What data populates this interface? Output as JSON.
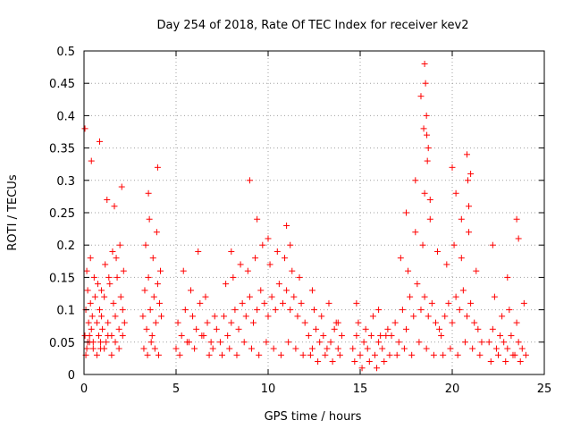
{
  "chart_data": {
    "type": "scatter",
    "title": "Day 254 of 2018, Rate Of TEC Index for receiver kev2",
    "xlabel": "GPS time / hours",
    "ylabel": "ROTI / TECUs",
    "xlim": [
      0,
      25
    ],
    "ylim": [
      0,
      0.5
    ],
    "x_ticks": [
      0,
      5,
      10,
      15,
      20,
      25
    ],
    "x_tick_labels": [
      "0",
      "5",
      "10",
      "15",
      "20",
      "25"
    ],
    "y_ticks": [
      0,
      0.05,
      0.1,
      0.15,
      0.2,
      0.25,
      0.3,
      0.35,
      0.4,
      0.45,
      0.5
    ],
    "y_tick_labels": [
      "0",
      "0.05",
      "0.1",
      "0.15",
      "0.2",
      "0.25",
      "0.3",
      "0.35",
      "0.4",
      "0.45",
      "0.5"
    ],
    "grid": true,
    "marker": "+",
    "color": "#ff0000",
    "series": [
      {
        "name": "kev2 ROTI",
        "x": [
          0.05,
          0.1,
          0.15,
          0.2,
          0.25,
          0.3,
          0.35,
          0.4,
          0.45,
          0.5,
          0.6,
          0.7,
          0.8,
          0.85,
          0.9,
          0.95,
          1.0,
          1.1,
          1.2,
          1.3,
          1.4,
          1.5,
          1.6,
          1.7,
          1.8,
          1.9,
          2.0,
          2.1,
          2.2,
          0.1,
          0.2,
          0.3,
          0.5,
          0.7,
          0.9,
          1.1,
          1.3,
          1.5,
          1.7,
          1.9,
          2.1,
          0.15,
          0.35,
          0.55,
          0.75,
          0.95,
          1.15,
          1.35,
          1.55,
          1.75,
          1.95,
          2.15,
          0.05,
          0.4,
          0.85,
          1.25,
          1.65,
          2.05,
          3.2,
          3.3,
          3.4,
          3.5,
          3.6,
          3.7,
          3.8,
          3.9,
          4.0,
          4.1,
          4.2,
          3.25,
          3.45,
          3.65,
          3.85,
          4.05,
          3.35,
          3.55,
          3.75,
          3.95,
          4.15,
          3.5,
          4.0,
          5.0,
          5.1,
          5.3,
          5.5,
          5.7,
          5.9,
          6.1,
          6.3,
          6.5,
          6.7,
          6.9,
          7.1,
          5.2,
          5.6,
          6.0,
          6.4,
          6.8,
          7.0,
          5.4,
          5.8,
          6.2,
          6.6,
          7.2,
          7.4,
          7.6,
          7.8,
          8.0,
          8.2,
          8.4,
          8.6,
          8.8,
          9.0,
          9.2,
          9.4,
          9.6,
          9.8,
          10.0,
          10.2,
          10.4,
          10.6,
          10.8,
          11.0,
          11.2,
          11.4,
          11.6,
          11.8,
          12.0,
          7.5,
          7.9,
          8.3,
          8.7,
          9.1,
          9.5,
          9.9,
          10.3,
          10.7,
          11.1,
          11.5,
          11.9,
          7.7,
          8.1,
          8.5,
          8.9,
          9.3,
          9.7,
          10.1,
          10.5,
          10.9,
          11.3,
          11.7,
          8.0,
          9.0,
          9.4,
          10.0,
          11.0,
          11.2,
          12.2,
          12.4,
          12.6,
          12.8,
          13.0,
          13.2,
          13.4,
          13.6,
          13.8,
          14.0,
          12.3,
          12.7,
          13.1,
          13.5,
          13.9,
          12.5,
          12.9,
          13.3,
          13.7,
          12.4,
          13.8,
          14.6,
          14.8,
          15.0,
          15.2,
          15.4,
          15.6,
          15.8,
          16.0,
          16.2,
          16.4,
          16.6,
          14.7,
          15.1,
          15.5,
          15.9,
          16.3,
          14.9,
          15.3,
          15.7,
          16.1,
          16.5,
          14.8,
          16.0,
          16.7,
          16.9,
          17.1,
          17.3,
          17.5,
          17.7,
          17.9,
          18.1,
          18.3,
          18.5,
          18.7,
          18.9,
          19.1,
          19.3,
          17.0,
          17.4,
          17.8,
          18.2,
          18.6,
          19.0,
          17.2,
          17.6,
          18.0,
          18.4,
          18.8,
          19.2,
          17.5,
          18.0,
          18.3,
          18.5,
          18.55,
          18.6,
          18.62,
          18.65,
          18.7,
          18.5,
          18.45,
          18.8,
          19.4,
          19.6,
          19.8,
          20.0,
          20.2,
          20.4,
          20.6,
          20.8,
          21.0,
          21.2,
          21.4,
          21.6,
          19.5,
          19.9,
          20.3,
          20.7,
          21.1,
          21.5,
          19.7,
          20.1,
          20.5,
          20.9,
          21.3,
          20.0,
          20.5,
          20.8,
          20.85,
          20.9,
          21.0,
          20.2,
          22.0,
          22.2,
          22.4,
          22.6,
          22.8,
          23.0,
          23.2,
          23.4,
          23.6,
          23.8,
          24.0,
          22.1,
          22.5,
          22.9,
          23.3,
          23.7,
          22.3,
          22.7,
          23.1,
          23.5,
          23.9,
          22.2,
          23.0,
          23.5,
          23.6
        ],
        "y": [
          0.06,
          0.1,
          0.04,
          0.13,
          0.08,
          0.05,
          0.11,
          0.07,
          0.09,
          0.05,
          0.12,
          0.08,
          0.06,
          0.1,
          0.04,
          0.09,
          0.07,
          0.12,
          0.05,
          0.08,
          0.14,
          0.06,
          0.11,
          0.09,
          0.15,
          0.07,
          0.12,
          0.1,
          0.08,
          0.03,
          0.05,
          0.06,
          0.04,
          0.03,
          0.05,
          0.04,
          0.06,
          0.03,
          0.05,
          0.04,
          0.06,
          0.16,
          0.18,
          0.15,
          0.14,
          0.13,
          0.17,
          0.15,
          0.19,
          0.18,
          0.2,
          0.16,
          0.38,
          0.33,
          0.36,
          0.27,
          0.26,
          0.29,
          0.09,
          0.13,
          0.07,
          0.15,
          0.1,
          0.06,
          0.12,
          0.08,
          0.14,
          0.11,
          0.09,
          0.04,
          0.03,
          0.05,
          0.04,
          0.03,
          0.2,
          0.24,
          0.18,
          0.22,
          0.16,
          0.28,
          0.32,
          0.04,
          0.08,
          0.06,
          0.1,
          0.05,
          0.09,
          0.07,
          0.11,
          0.06,
          0.08,
          0.05,
          0.09,
          0.03,
          0.05,
          0.04,
          0.06,
          0.03,
          0.04,
          0.16,
          0.13,
          0.19,
          0.12,
          0.07,
          0.05,
          0.09,
          0.06,
          0.08,
          0.1,
          0.07,
          0.11,
          0.09,
          0.12,
          0.08,
          0.1,
          0.13,
          0.11,
          0.09,
          0.12,
          0.1,
          0.14,
          0.11,
          0.13,
          0.1,
          0.12,
          0.09,
          0.11,
          0.08,
          0.03,
          0.04,
          0.03,
          0.05,
          0.04,
          0.03,
          0.05,
          0.04,
          0.03,
          0.05,
          0.04,
          0.03,
          0.14,
          0.15,
          0.17,
          0.16,
          0.18,
          0.2,
          0.17,
          0.19,
          0.18,
          0.16,
          0.15,
          0.19,
          0.3,
          0.24,
          0.21,
          0.23,
          0.2,
          0.06,
          0.04,
          0.07,
          0.05,
          0.06,
          0.04,
          0.05,
          0.07,
          0.04,
          0.06,
          0.03,
          0.02,
          0.03,
          0.02,
          0.03,
          0.1,
          0.09,
          0.11,
          0.08,
          0.13,
          0.08,
          0.04,
          0.06,
          0.03,
          0.05,
          0.04,
          0.06,
          0.03,
          0.05,
          0.04,
          0.06,
          0.03,
          0.02,
          0.01,
          0.02,
          0.01,
          0.02,
          0.08,
          0.07,
          0.09,
          0.06,
          0.07,
          0.11,
          0.1,
          0.06,
          0.08,
          0.05,
          0.1,
          0.07,
          0.12,
          0.09,
          0.14,
          0.1,
          0.12,
          0.09,
          0.11,
          0.08,
          0.07,
          0.03,
          0.04,
          0.03,
          0.05,
          0.04,
          0.03,
          0.18,
          0.16,
          0.22,
          0.2,
          0.24,
          0.19,
          0.25,
          0.3,
          0.43,
          0.48,
          0.45,
          0.4,
          0.37,
          0.33,
          0.35,
          0.28,
          0.38,
          0.27,
          0.06,
          0.09,
          0.11,
          0.08,
          0.12,
          0.1,
          0.13,
          0.09,
          0.11,
          0.08,
          0.07,
          0.05,
          0.03,
          0.04,
          0.03,
          0.05,
          0.04,
          0.03,
          0.17,
          0.2,
          0.18,
          0.22,
          0.16,
          0.32,
          0.24,
          0.34,
          0.3,
          0.26,
          0.31,
          0.28,
          0.05,
          0.07,
          0.04,
          0.06,
          0.05,
          0.04,
          0.06,
          0.03,
          0.05,
          0.04,
          0.03,
          0.02,
          0.03,
          0.02,
          0.03,
          0.02,
          0.12,
          0.09,
          0.1,
          0.08,
          0.11,
          0.2,
          0.15,
          0.24,
          0.21
        ]
      }
    ]
  }
}
